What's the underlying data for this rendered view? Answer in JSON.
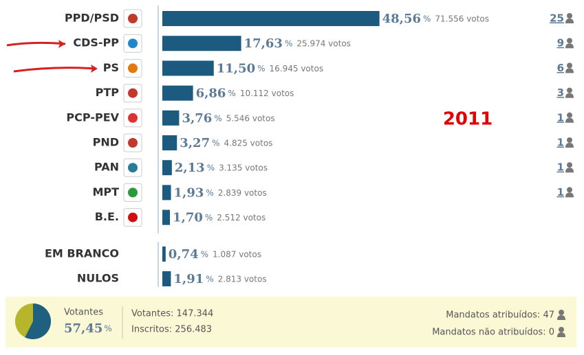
{
  "chart_data": {
    "type": "bar",
    "orientation": "horizontal",
    "color": "#1c5a80",
    "categories": [
      "PPD/PSD",
      "CDS-PP",
      "PS",
      "PTP",
      "PCP-PEV",
      "PND",
      "PAN",
      "MPT",
      "B.E."
    ],
    "values": [
      48.56,
      17.63,
      11.5,
      6.86,
      3.76,
      3.27,
      2.13,
      1.93,
      1.7
    ],
    "value_labels": [
      "48,56",
      "17,63",
      "11,50",
      "6,86",
      "3,76",
      "3,27",
      "2,13",
      "1,93",
      "1,70"
    ],
    "unit": "%",
    "votes": [
      "71.556 votos",
      "25.974 votos",
      "16.945 votos",
      "10.112 votos",
      "5.546 votos",
      "4.825 votos",
      "3.135 votos",
      "2.839 votos",
      "2.512 votos"
    ],
    "seats": [
      25,
      9,
      6,
      3,
      1,
      1,
      1,
      1,
      null
    ],
    "other_categories": [
      "EM BRANCO",
      "NULOS"
    ],
    "other_values": [
      0.74,
      1.91
    ],
    "other_value_labels": [
      "0,74",
      "1,91"
    ],
    "other_votes": [
      "1.087 votos",
      "2.813 votos"
    ],
    "annotation": "2011"
  },
  "footer": {
    "turnout_label": "Votantes",
    "turnout": 57.45,
    "turnout_text": "57,45",
    "voters": "Votantes: 147.344",
    "registered": "Inscritos: 256.483",
    "seats_assigned": "Mandatos atribuídos: 47",
    "seats_unassigned": "Mandatos não atribuídos: 0"
  }
}
